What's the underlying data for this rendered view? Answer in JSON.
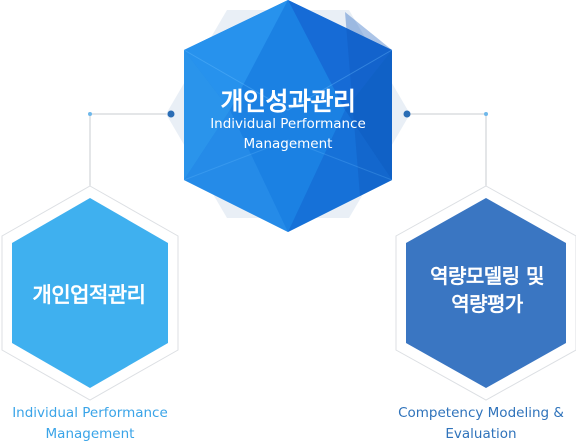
{
  "main": {
    "title": "개인성과관리",
    "subtitle_line1": "Individual Performance",
    "subtitle_line2": "Management",
    "color": "#1e8ae6"
  },
  "left": {
    "title": "개인업적관리",
    "caption_line1": "Individual Performance",
    "caption_line2": "Management",
    "color": "#3fb0ef"
  },
  "right": {
    "title_line1": "역량모델링 및",
    "title_line2": "역량평가",
    "caption_line1": "Competency Modeling &",
    "caption_line2": "Evaluation",
    "color": "#3a76c2"
  },
  "colors": {
    "connector": "#c9ccd1",
    "dot_dark": "#2a6db5",
    "dot_light": "#6fb8ea",
    "halo": "#e3ebf4"
  }
}
